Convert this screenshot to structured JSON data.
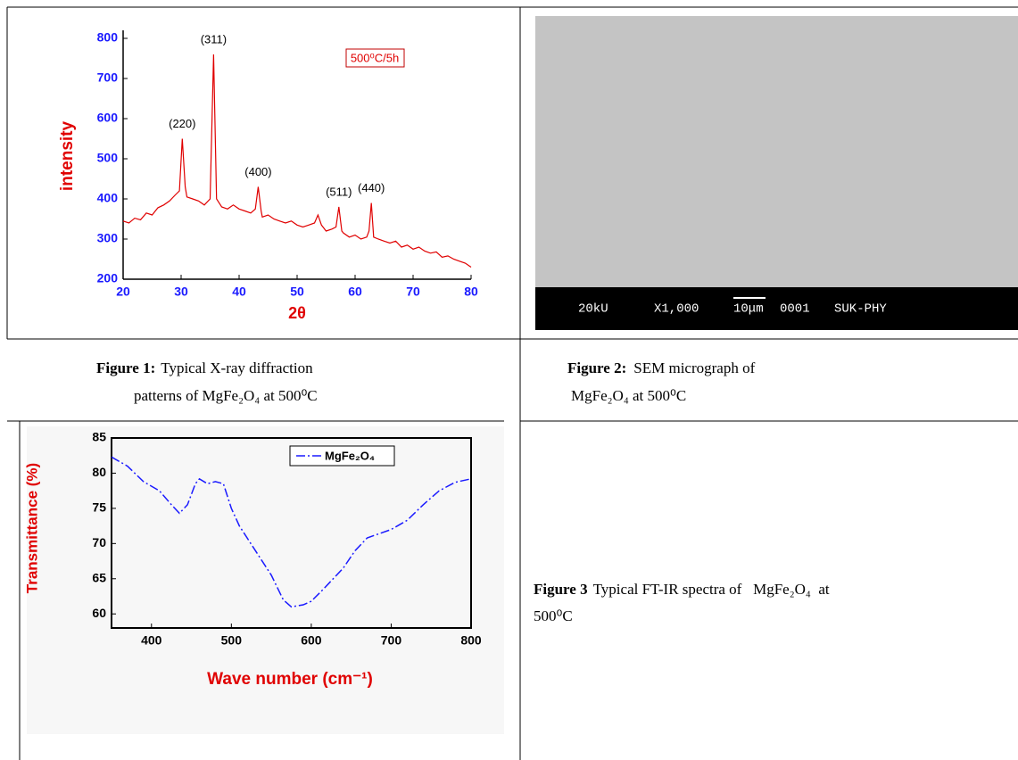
{
  "chart_data": [
    {
      "type": "line",
      "xlabel": "2θ",
      "ylabel": "intensity",
      "color": "#e00000",
      "x": [
        20,
        21,
        22,
        23,
        24,
        25,
        26,
        27,
        28,
        29,
        29.7,
        30.2,
        30.7,
        31,
        32,
        33,
        34,
        35,
        35.6,
        36.1,
        37,
        38,
        39,
        40,
        41,
        42,
        42.8,
        43.3,
        43.8,
        44,
        45,
        46,
        47,
        48,
        49,
        50,
        51,
        52,
        53,
        53.6,
        54.2,
        55,
        56,
        56.7,
        57.2,
        57.7,
        58,
        59,
        60,
        61,
        62,
        62.4,
        62.8,
        63.2,
        64,
        65,
        66,
        67,
        68,
        69,
        70,
        71,
        72,
        73,
        74,
        75,
        76,
        77,
        78,
        79,
        80
      ],
      "values": [
        345,
        340,
        352,
        348,
        365,
        360,
        378,
        385,
        395,
        410,
        420,
        550,
        430,
        405,
        400,
        395,
        385,
        400,
        760,
        400,
        380,
        375,
        385,
        375,
        370,
        365,
        375,
        430,
        370,
        355,
        360,
        350,
        345,
        340,
        345,
        335,
        330,
        335,
        340,
        360,
        335,
        320,
        325,
        330,
        380,
        320,
        315,
        305,
        310,
        300,
        305,
        320,
        390,
        305,
        300,
        295,
        290,
        295,
        280,
        285,
        275,
        280,
        270,
        265,
        268,
        255,
        258,
        250,
        245,
        240,
        230
      ],
      "xlim": [
        20,
        80
      ],
      "ylim": [
        200,
        820
      ],
      "xticks": [
        20,
        30,
        40,
        50,
        60,
        70,
        80
      ],
      "yticks": [
        200,
        300,
        400,
        500,
        600,
        700,
        800
      ],
      "annotations": [
        {
          "text": "(220)",
          "x": 30.2
        },
        {
          "text": "(311)",
          "x": 35.6
        },
        {
          "text": "(400)",
          "x": 43.3
        },
        {
          "text": "(511)",
          "x": 57.2
        },
        {
          "text": "(440)",
          "x": 62.8
        }
      ],
      "note": "500⁰C/5h"
    },
    {
      "type": "line",
      "xlabel": "Wave number (cm⁻¹)",
      "ylabel": "Transmittance (%)",
      "x": [
        350,
        370,
        390,
        410,
        425,
        435,
        445,
        455,
        460,
        470,
        480,
        490,
        500,
        510,
        530,
        550,
        565,
        575,
        590,
        600,
        615,
        640,
        655,
        670,
        700,
        720,
        740,
        760,
        780,
        800
      ],
      "series": [
        {
          "name": "MgFe₂O₄",
          "color": "#1a1aff",
          "values": [
            82.3,
            81,
            78.8,
            77.5,
            75.5,
            74.3,
            75.5,
            78.5,
            79.2,
            78.5,
            78.8,
            78.5,
            75,
            72.5,
            69,
            65.5,
            62,
            61,
            61.3,
            61.8,
            63.5,
            66.5,
            69,
            70.8,
            72,
            73.3,
            75.5,
            77.5,
            78.7,
            79.2
          ]
        }
      ],
      "xlim": [
        350,
        800
      ],
      "ylim": [
        58,
        85
      ],
      "xticks": [
        400,
        500,
        600,
        700,
        800
      ],
      "yticks": [
        60,
        65,
        70,
        75,
        80,
        85
      ],
      "legend": "upper right"
    }
  ],
  "sem_image": {
    "bar_text": [
      "20kU",
      "X1,000",
      "10μm",
      "0001",
      "SUK-PHY"
    ]
  },
  "captions": [
    {
      "label": "Figure 1:",
      "lines": [
        "Typical X-ray diffraction",
        "patterns of MgFe₂O₄ at 500⁰C"
      ]
    },
    {
      "label": "Figure 2:",
      "lines": [
        "SEM micrograph of",
        "MgFe₂O₄ at 500⁰C"
      ]
    },
    {
      "label": "Figure 3",
      "lines": [
        "Typical FT-IR spectra of   MgFe₂O₄  at",
        "500⁰C"
      ]
    }
  ]
}
